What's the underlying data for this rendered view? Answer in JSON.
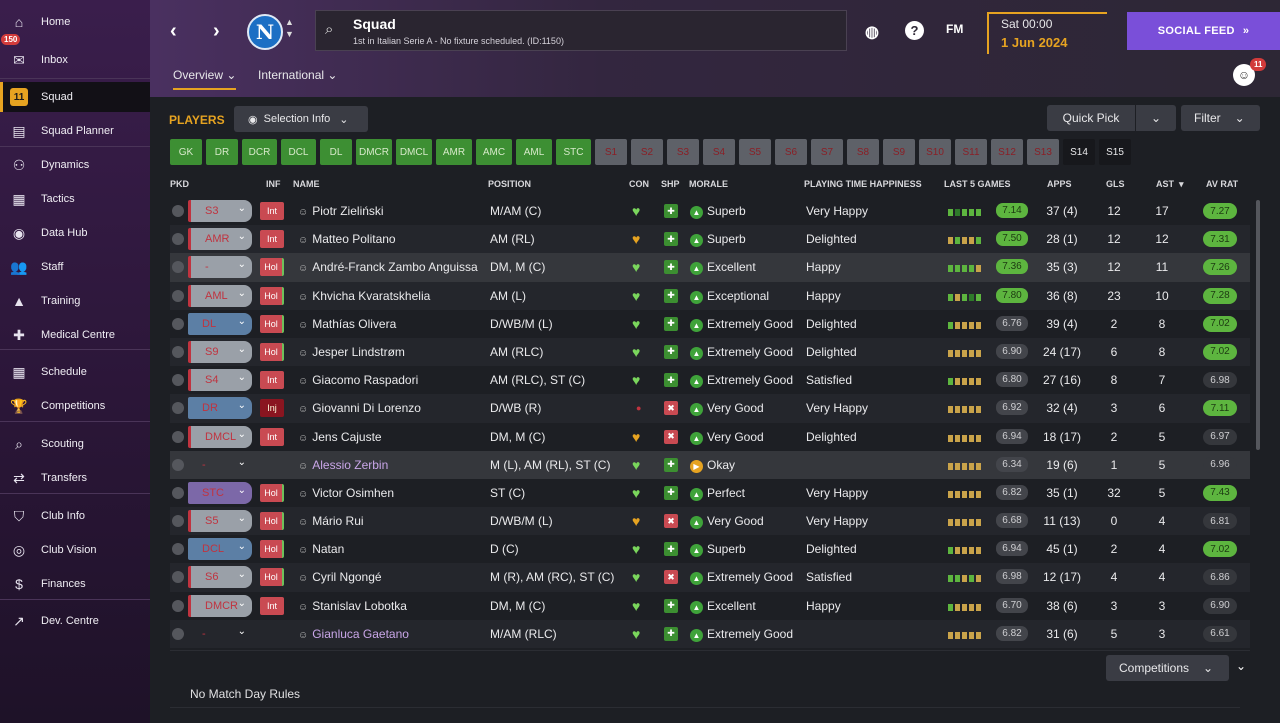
{
  "sidebar": {
    "inbox_badge": "150",
    "items": [
      {
        "label": "Home",
        "icon": "home-icon",
        "glyph": "⌂"
      },
      {
        "label": "Inbox",
        "icon": "inbox-icon",
        "glyph": "✉"
      },
      {
        "label": "Squad",
        "icon": "squad-shirt-icon",
        "glyph": "11"
      },
      {
        "label": "Squad Planner",
        "icon": "planner-icon",
        "glyph": "▤"
      },
      {
        "label": "Dynamics",
        "icon": "dynamics-icon",
        "glyph": "⚇"
      },
      {
        "label": "Tactics",
        "icon": "tactics-icon",
        "glyph": "▦"
      },
      {
        "label": "Data Hub",
        "icon": "datahub-icon",
        "glyph": "◉"
      },
      {
        "label": "Staff",
        "icon": "staff-icon",
        "glyph": "👥"
      },
      {
        "label": "Training",
        "icon": "training-icon",
        "glyph": "▲"
      },
      {
        "label": "Medical Centre",
        "icon": "medical-icon",
        "glyph": "✚"
      },
      {
        "label": "Schedule",
        "icon": "schedule-icon",
        "glyph": "▦"
      },
      {
        "label": "Competitions",
        "icon": "trophy-icon",
        "glyph": "🏆"
      },
      {
        "label": "Scouting",
        "icon": "scouting-icon",
        "glyph": "⌕"
      },
      {
        "label": "Transfers",
        "icon": "transfers-icon",
        "glyph": "⇄"
      },
      {
        "label": "Club Info",
        "icon": "shield-icon",
        "glyph": "⛉"
      },
      {
        "label": "Club Vision",
        "icon": "vision-icon",
        "glyph": "◎"
      },
      {
        "label": "Finances",
        "icon": "finances-icon",
        "glyph": "$"
      },
      {
        "label": "Dev. Centre",
        "icon": "dev-centre-icon",
        "glyph": "↗"
      }
    ]
  },
  "header": {
    "club_badge": "N",
    "search_title": "Squad",
    "search_subtitle": "1st in Italian Serie A - No fixture scheduled. (ID:1150)",
    "fm_label": "FM",
    "date_time": "Sat 00:00",
    "date_day": "1 Jun 2024",
    "social_feed": "SOCIAL FEED",
    "user_badge": "11",
    "tabs": [
      "Overview",
      "International"
    ]
  },
  "toolbar": {
    "players_label": "PLAYERS",
    "selection_info": "Selection Info",
    "quick_pick": "Quick Pick",
    "filter": "Filter"
  },
  "position_chips": [
    {
      "label": "GK",
      "style": "green"
    },
    {
      "label": "DR",
      "style": "green"
    },
    {
      "label": "DCR",
      "style": "green"
    },
    {
      "label": "DCL",
      "style": "green"
    },
    {
      "label": "DL",
      "style": "green"
    },
    {
      "label": "DMCR",
      "style": "green"
    },
    {
      "label": "DMCL",
      "style": "green"
    },
    {
      "label": "AMR",
      "style": "green"
    },
    {
      "label": "AMC",
      "style": "green"
    },
    {
      "label": "AML",
      "style": "green"
    },
    {
      "label": "STC",
      "style": "green"
    },
    {
      "label": "S1",
      "style": "grey"
    },
    {
      "label": "S2",
      "style": "grey"
    },
    {
      "label": "S3",
      "style": "grey"
    },
    {
      "label": "S4",
      "style": "grey"
    },
    {
      "label": "S5",
      "style": "grey"
    },
    {
      "label": "S6",
      "style": "grey"
    },
    {
      "label": "S7",
      "style": "grey"
    },
    {
      "label": "S8",
      "style": "grey"
    },
    {
      "label": "S9",
      "style": "grey"
    },
    {
      "label": "S10",
      "style": "grey"
    },
    {
      "label": "S11",
      "style": "grey"
    },
    {
      "label": "S12",
      "style": "grey"
    },
    {
      "label": "S13",
      "style": "grey"
    },
    {
      "label": "S14",
      "style": "dark"
    },
    {
      "label": "S15",
      "style": "dark"
    }
  ],
  "columns": {
    "pkd": "PKD",
    "inf": "INF",
    "name": "NAME",
    "position": "POSITION",
    "con": "CON",
    "shp": "SHP",
    "morale": "MORALE",
    "happiness": "PLAYING TIME HAPPINESS",
    "last5": "LAST 5 GAMES",
    "apps": "APPS",
    "gls": "GLS",
    "ast": "AST",
    "avrat": "AV RAT"
  },
  "players": [
    {
      "pkd": "S3",
      "pkd_style": "red",
      "inf": "Int",
      "inf_style": "int",
      "name": "Piotr Zieliński",
      "position": "M/AM (C)",
      "con": "green",
      "shp": "green",
      "morale": "Superb",
      "morale_color": "#3fa33a",
      "happiness": "Very Happy",
      "last5": [
        "#5db53f",
        "#2e7a2a",
        "#5db53f",
        "#5db53f",
        "#5db53f"
      ],
      "rating": "7.14",
      "rating_style": "g",
      "apps": "37 (4)",
      "gls": "12",
      "ast": "17",
      "avrat": "7.27",
      "avrat_style": "g"
    },
    {
      "pkd": "AMR",
      "pkd_style": "red",
      "inf": "Int",
      "inf_style": "int",
      "name": "Matteo Politano",
      "position": "AM (RL)",
      "con": "gold",
      "shp": "green",
      "morale": "Superb",
      "morale_color": "#3fa33a",
      "happiness": "Delighted",
      "last5": [
        "#c9a34a",
        "#5db53f",
        "#c9a34a",
        "#c9a34a",
        "#5db53f"
      ],
      "rating": "7.50",
      "rating_style": "g",
      "apps": "28 (1)",
      "gls": "12",
      "ast": "12",
      "avrat": "7.31",
      "avrat_style": "g"
    },
    {
      "pkd": "-",
      "pkd_style": "red",
      "inf": "Hol",
      "inf_style": "hol",
      "name": "André-Franck Zambo Anguissa",
      "position": "DM, M (C)",
      "con": "green",
      "shp": "green",
      "morale": "Excellent",
      "morale_color": "#3fa33a",
      "happiness": "Happy",
      "last5": [
        "#5db53f",
        "#5db53f",
        "#5db53f",
        "#5db53f",
        "#c9a34a"
      ],
      "rating": "7.36",
      "rating_style": "g",
      "apps": "35 (3)",
      "gls": "12",
      "ast": "11",
      "avrat": "7.26",
      "avrat_style": "g",
      "selected": true
    },
    {
      "pkd": "AML",
      "pkd_style": "red",
      "inf": "Hol",
      "inf_style": "hol",
      "name": "Khvicha Kvaratskhelia",
      "position": "AM (L)",
      "con": "green",
      "shp": "green",
      "morale": "Exceptional",
      "morale_color": "#3fa33a",
      "happiness": "Happy",
      "last5": [
        "#5db53f",
        "#c9a34a",
        "#5db53f",
        "#2e7a2a",
        "#5db53f"
      ],
      "rating": "7.80",
      "rating_style": "g",
      "apps": "36 (8)",
      "gls": "23",
      "ast": "10",
      "avrat": "7.28",
      "avrat_style": "g"
    },
    {
      "pkd": "DL",
      "pkd_style": "blue",
      "inf": "Hol",
      "inf_style": "hol",
      "name": "Mathías Olivera",
      "position": "D/WB/M (L)",
      "con": "green",
      "shp": "green",
      "morale": "Extremely Good",
      "morale_color": "#3fa33a",
      "happiness": "Delighted",
      "last5": [
        "#5db53f",
        "#c9a34a",
        "#c9a34a",
        "#c9a34a",
        "#c9a34a"
      ],
      "rating": "6.76",
      "rating_style": "n",
      "apps": "39 (4)",
      "gls": "2",
      "ast": "8",
      "avrat": "7.02",
      "avrat_style": "g"
    },
    {
      "pkd": "S9",
      "pkd_style": "red",
      "inf": "Hol",
      "inf_style": "hol",
      "name": "Jesper Lindstrøm",
      "position": "AM (RLC)",
      "con": "green",
      "shp": "green",
      "morale": "Extremely Good",
      "morale_color": "#3fa33a",
      "happiness": "Delighted",
      "last5": [
        "#c9a34a",
        "#c9a34a",
        "#c9a34a",
        "#c9a34a",
        "#c9a34a"
      ],
      "rating": "6.90",
      "rating_style": "n",
      "apps": "24 (17)",
      "gls": "6",
      "ast": "8",
      "avrat": "7.02",
      "avrat_style": "g"
    },
    {
      "pkd": "S4",
      "pkd_style": "red",
      "inf": "Int",
      "inf_style": "int",
      "name": "Giacomo Raspadori",
      "position": "AM (RLC), ST (C)",
      "con": "green",
      "shp": "green",
      "morale": "Extremely Good",
      "morale_color": "#3fa33a",
      "happiness": "Satisfied",
      "last5": [
        "#5db53f",
        "#c9a34a",
        "#c9a34a",
        "#c9a34a",
        "#c9a34a"
      ],
      "rating": "6.80",
      "rating_style": "n",
      "apps": "27 (16)",
      "gls": "8",
      "ast": "7",
      "avrat": "6.98",
      "avrat_style": "n"
    },
    {
      "pkd": "DR",
      "pkd_style": "blue",
      "inf": "Inj",
      "inf_style": "inj",
      "name": "Giovanni Di Lorenzo",
      "position": "D/WB (R)",
      "con": "red",
      "shp": "red",
      "morale": "Very Good",
      "morale_color": "#3fa33a",
      "happiness": "Very Happy",
      "last5": [
        "#c9a34a",
        "#c9a34a",
        "#c9a34a",
        "#c9a34a",
        "#c9a34a"
      ],
      "rating": "6.92",
      "rating_style": "n",
      "apps": "32 (4)",
      "gls": "3",
      "ast": "6",
      "avrat": "7.11",
      "avrat_style": "g"
    },
    {
      "pkd": "DMCL",
      "pkd_style": "red",
      "inf": "Int",
      "inf_style": "int",
      "name": "Jens Cajuste",
      "position": "DM, M (C)",
      "con": "gold",
      "shp": "red",
      "morale": "Very Good",
      "morale_color": "#3fa33a",
      "happiness": "Delighted",
      "last5": [
        "#c9a34a",
        "#c9a34a",
        "#c9a34a",
        "#c9a34a",
        "#c9a34a"
      ],
      "rating": "6.94",
      "rating_style": "n",
      "apps": "18 (17)",
      "gls": "2",
      "ast": "5",
      "avrat": "6.97",
      "avrat_style": "n"
    },
    {
      "pkd": "-",
      "pkd_style": "none",
      "inf": "",
      "inf_style": "",
      "name": "Alessio Zerbin",
      "loan": true,
      "position": "M (L), AM (RL), ST (C)",
      "con": "green",
      "shp": "green",
      "morale": "Okay",
      "morale_color": "#e6a321",
      "happiness": "",
      "last5": [
        "#c9a34a",
        "#c9a34a",
        "#c9a34a",
        "#c9a34a",
        "#c9a34a"
      ],
      "rating": "6.34",
      "rating_style": "n",
      "apps": "19 (6)",
      "gls": "1",
      "ast": "5",
      "avrat": "6.96",
      "avrat_style": "n",
      "selected": true
    },
    {
      "pkd": "STC",
      "pkd_style": "purple",
      "inf": "Hol",
      "inf_style": "hol",
      "name": "Victor Osimhen",
      "position": "ST (C)",
      "con": "green",
      "shp": "green",
      "morale": "Perfect",
      "morale_color": "#3fa33a",
      "happiness": "Very Happy",
      "last5": [
        "#c9a34a",
        "#c9a34a",
        "#c9a34a",
        "#c9a34a",
        "#c9a34a"
      ],
      "rating": "6.82",
      "rating_style": "n",
      "apps": "35 (1)",
      "gls": "32",
      "ast": "5",
      "avrat": "7.43",
      "avrat_style": "g"
    },
    {
      "pkd": "S5",
      "pkd_style": "red",
      "inf": "Hol",
      "inf_style": "hol",
      "name": "Mário Rui",
      "position": "D/WB/M (L)",
      "con": "gold",
      "shp": "red",
      "morale": "Very Good",
      "morale_color": "#3fa33a",
      "happiness": "Very Happy",
      "last5": [
        "#c9a34a",
        "#c9a34a",
        "#c9a34a",
        "#c9a34a",
        "#c9a34a"
      ],
      "rating": "6.68",
      "rating_style": "n",
      "apps": "11 (13)",
      "gls": "0",
      "ast": "4",
      "avrat": "6.81",
      "avrat_style": "n"
    },
    {
      "pkd": "DCL",
      "pkd_style": "blue",
      "inf": "Hol",
      "inf_style": "hol",
      "name": "Natan",
      "position": "D (C)",
      "con": "green",
      "shp": "green",
      "morale": "Superb",
      "morale_color": "#3fa33a",
      "happiness": "Delighted",
      "last5": [
        "#5db53f",
        "#c9a34a",
        "#c9a34a",
        "#c9a34a",
        "#c9a34a"
      ],
      "rating": "6.94",
      "rating_style": "n",
      "apps": "45 (1)",
      "gls": "2",
      "ast": "4",
      "avrat": "7.02",
      "avrat_style": "g"
    },
    {
      "pkd": "S6",
      "pkd_style": "red",
      "inf": "Hol",
      "inf_style": "hol",
      "name": "Cyril Ngongé",
      "position": "M (R), AM (RC), ST (C)",
      "con": "green",
      "shp": "red",
      "morale": "Extremely Good",
      "morale_color": "#3fa33a",
      "happiness": "Satisfied",
      "last5": [
        "#5db53f",
        "#5db53f",
        "#c9a34a",
        "#5db53f",
        "#c9a34a"
      ],
      "rating": "6.98",
      "rating_style": "n",
      "apps": "12 (17)",
      "gls": "4",
      "ast": "4",
      "avrat": "6.86",
      "avrat_style": "n"
    },
    {
      "pkd": "DMCR",
      "pkd_style": "red",
      "inf": "Int",
      "inf_style": "int",
      "name": "Stanislav Lobotka",
      "position": "DM, M (C)",
      "con": "green",
      "shp": "green",
      "morale": "Excellent",
      "morale_color": "#3fa33a",
      "happiness": "Happy",
      "last5": [
        "#5db53f",
        "#c9a34a",
        "#c9a34a",
        "#c9a34a",
        "#c9a34a"
      ],
      "rating": "6.70",
      "rating_style": "n",
      "apps": "38 (6)",
      "gls": "3",
      "ast": "3",
      "avrat": "6.90",
      "avrat_style": "n"
    },
    {
      "pkd": "-",
      "pkd_style": "none",
      "inf": "",
      "inf_style": "",
      "name": "Gianluca Gaetano",
      "loan": true,
      "position": "M/AM (RLC)",
      "con": "green",
      "shp": "green",
      "morale": "Extremely Good",
      "morale_color": "#3fa33a",
      "happiness": "",
      "last5": [
        "#c9a34a",
        "#c9a34a",
        "#c9a34a",
        "#c9a34a",
        "#c9a34a"
      ],
      "rating": "6.82",
      "rating_style": "n",
      "apps": "31 (6)",
      "gls": "5",
      "ast": "3",
      "avrat": "6.61",
      "avrat_style": "n"
    }
  ],
  "footer": {
    "competitions": "Competitions",
    "rules": "No Match Day Rules"
  },
  "colors": {
    "accent": "#e6a321",
    "social": "#7a4fd9",
    "good": "#5db53f",
    "bad": "#c94a52"
  }
}
